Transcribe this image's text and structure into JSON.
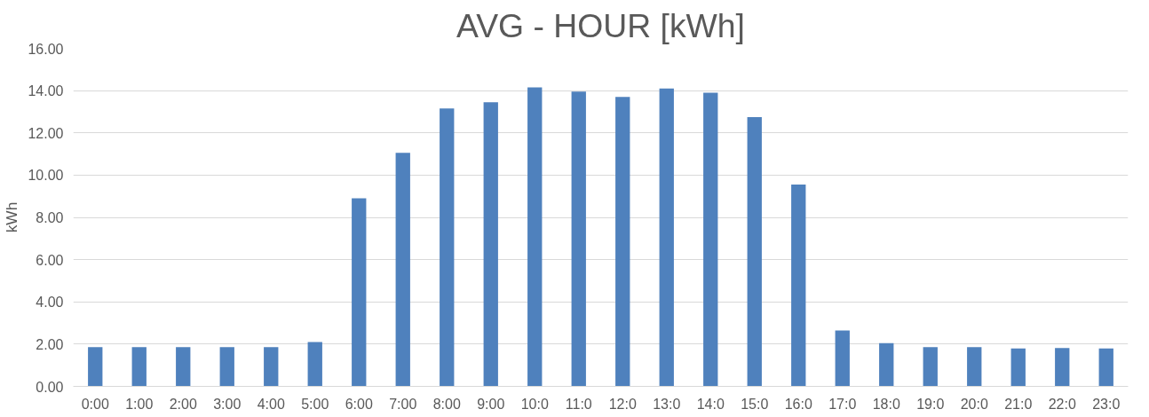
{
  "chart_data": {
    "type": "bar",
    "title": "AVG - HOUR [kWh]",
    "ylabel": "kWh",
    "categories": [
      "0:00",
      "1:00",
      "2:00",
      "3:00",
      "4:00",
      "5:00",
      "6:00",
      "7:00",
      "8:00",
      "9:00",
      "10:0",
      "11:0",
      "12:0",
      "13:0",
      "14:0",
      "15:0",
      "16:0",
      "17:0",
      "18:0",
      "19:0",
      "20:0",
      "21:0",
      "22:0",
      "23:0"
    ],
    "series": [
      {
        "color": "#4f81bd",
        "values": [
          1.86,
          1.86,
          1.86,
          1.86,
          1.86,
          2.1,
          8.9,
          11.05,
          13.15,
          13.45,
          14.15,
          13.95,
          13.7,
          14.1,
          13.9,
          12.75,
          9.55,
          2.65,
          2.05,
          1.86,
          1.86,
          1.8,
          1.82,
          1.8
        ]
      }
    ],
    "ylim": [
      0,
      16
    ],
    "yticks": [
      {
        "value": 0,
        "label": "0.00"
      },
      {
        "value": 2,
        "label": "2.00"
      },
      {
        "value": 4,
        "label": "4.00"
      },
      {
        "value": 6,
        "label": "6.00"
      },
      {
        "value": 8,
        "label": "8.00"
      },
      {
        "value": 10,
        "label": "10.00"
      },
      {
        "value": 12,
        "label": "12.00"
      },
      {
        "value": 14,
        "label": "14.00"
      },
      {
        "value": 16,
        "label": "16.00"
      }
    ],
    "grid": "y"
  }
}
